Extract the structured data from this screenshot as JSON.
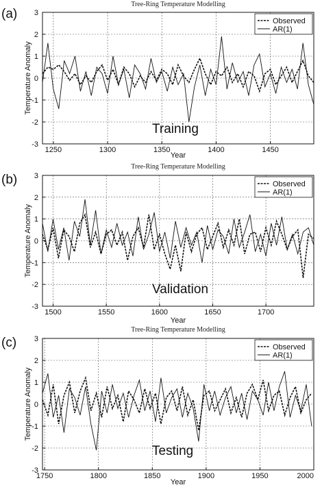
{
  "chart_data": [
    {
      "type": "line",
      "panel_label": "(a)",
      "title": "Tree-Ring Temperature Modelling",
      "xlabel": "Year",
      "ylabel": "Temperature Anomaly",
      "annotation": "Training",
      "xlim": [
        1240,
        1490
      ],
      "ylim": [
        -3,
        3
      ],
      "xticks": [
        1250,
        1300,
        1350,
        1400,
        1450
      ],
      "yticks": [
        -3,
        -2,
        -1,
        0,
        1,
        2,
        3
      ],
      "grid": true,
      "legend": "top-right",
      "series": [
        {
          "name": "Observed",
          "style": "dashed",
          "x": [
            1240,
            1245,
            1250,
            1255,
            1260,
            1265,
            1270,
            1275,
            1280,
            1285,
            1290,
            1295,
            1300,
            1305,
            1310,
            1315,
            1320,
            1325,
            1330,
            1335,
            1340,
            1345,
            1350,
            1355,
            1360,
            1365,
            1370,
            1375,
            1380,
            1385,
            1390,
            1395,
            1400,
            1405,
            1410,
            1415,
            1420,
            1425,
            1430,
            1435,
            1440,
            1445,
            1450,
            1455,
            1460,
            1465,
            1470,
            1475,
            1480,
            1485,
            1490
          ],
          "y": [
            0.2,
            0.5,
            0.4,
            0.6,
            0.3,
            -0.1,
            0.2,
            -0.3,
            0.1,
            -0.2,
            0.3,
            0.6,
            -0.1,
            0.4,
            -0.3,
            0.5,
            0.2,
            -0.4,
            0.1,
            -0.2,
            0.3,
            -0.1,
            0.4,
            0.2,
            -0.3,
            0.6,
            0.1,
            -0.2,
            0.4,
            0.9,
            0.2,
            -0.3,
            0.3,
            0.1,
            0.5,
            -0.2,
            0.2,
            -0.4,
            0.3,
            0.1,
            -0.6,
            0.2,
            0.4,
            -0.3,
            0.1,
            0.5,
            -0.2,
            0.3,
            0.8,
            0.1,
            -0.2
          ]
        },
        {
          "name": "AR(1)",
          "style": "solid",
          "x": [
            1240,
            1245,
            1250,
            1255,
            1260,
            1265,
            1270,
            1275,
            1280,
            1285,
            1290,
            1295,
            1300,
            1305,
            1310,
            1315,
            1320,
            1325,
            1330,
            1335,
            1340,
            1345,
            1350,
            1355,
            1360,
            1365,
            1370,
            1375,
            1380,
            1385,
            1390,
            1395,
            1400,
            1405,
            1410,
            1415,
            1420,
            1425,
            1430,
            1435,
            1440,
            1445,
            1450,
            1455,
            1460,
            1465,
            1470,
            1475,
            1480,
            1485,
            1490
          ],
          "y": [
            -0.2,
            1.6,
            -0.5,
            -1.4,
            0.8,
            0.2,
            1.0,
            -0.6,
            0.3,
            -0.8,
            0.5,
            0.2,
            -0.7,
            1.0,
            -0.3,
            0.4,
            -0.9,
            0.6,
            0.2,
            -0.5,
            0.9,
            -0.2,
            0.3,
            -0.6,
            0.5,
            -0.3,
            0.2,
            -2.0,
            -0.4,
            0.6,
            -0.8,
            0.4,
            -0.3,
            1.9,
            -0.5,
            0.7,
            -0.2,
            0.3,
            -0.8,
            0.6,
            1.1,
            -0.4,
            0.2,
            -0.7,
            0.5,
            -0.2,
            0.4,
            -0.5,
            1.6,
            -0.3,
            -1.2
          ]
        }
      ]
    },
    {
      "type": "line",
      "panel_label": "(b)",
      "title": "Tree-Ring Temperature Modelling",
      "xlabel": "Year",
      "ylabel": "Temperature Anomaly",
      "annotation": "Validation",
      "xlim": [
        1490,
        1745
      ],
      "ylim": [
        -3,
        3
      ],
      "xticks": [
        1500,
        1550,
        1600,
        1650,
        1700
      ],
      "yticks": [
        -3,
        -2,
        -1,
        0,
        1,
        2,
        3
      ],
      "grid": true,
      "legend": "top-right",
      "series": [
        {
          "name": "Observed",
          "style": "dashed",
          "x": [
            1490,
            1495,
            1500,
            1505,
            1510,
            1515,
            1520,
            1525,
            1530,
            1535,
            1540,
            1545,
            1550,
            1555,
            1560,
            1565,
            1570,
            1575,
            1580,
            1585,
            1590,
            1595,
            1600,
            1605,
            1610,
            1615,
            1620,
            1625,
            1630,
            1635,
            1640,
            1645,
            1650,
            1655,
            1660,
            1665,
            1670,
            1675,
            1680,
            1685,
            1690,
            1695,
            1700,
            1705,
            1710,
            1715,
            1720,
            1725,
            1730,
            1735,
            1740,
            1745
          ],
          "y": [
            0.3,
            -0.4,
            0.6,
            -0.8,
            0.5,
            0.2,
            -0.5,
            0.8,
            1.2,
            -0.3,
            0.4,
            -0.6,
            0.3,
            0.5,
            -0.2,
            0.4,
            -0.9,
            0.2,
            0.6,
            -0.3,
            1.2,
            -0.4,
            0.3,
            -0.6,
            -1.3,
            -0.2,
            -1.4,
            0.4,
            -0.5,
            0.3,
            0.6,
            -0.4,
            0.2,
            0.8,
            -0.3,
            0.5,
            -0.2,
            1.0,
            -0.6,
            0.3,
            0.4,
            -0.5,
            0.6,
            -0.2,
            0.9,
            0.3,
            -0.4,
            0.2,
            0.5,
            -1.7,
            0.3,
            0.1
          ]
        },
        {
          "name": "AR(1)",
          "style": "solid",
          "x": [
            1490,
            1495,
            1500,
            1505,
            1510,
            1515,
            1520,
            1525,
            1530,
            1535,
            1540,
            1545,
            1550,
            1555,
            1560,
            1565,
            1570,
            1575,
            1580,
            1585,
            1590,
            1595,
            1600,
            1605,
            1610,
            1615,
            1620,
            1625,
            1630,
            1635,
            1640,
            1645,
            1650,
            1655,
            1660,
            1665,
            1670,
            1675,
            1680,
            1685,
            1690,
            1695,
            1700,
            1705,
            1710,
            1715,
            1720,
            1725,
            1730,
            1735,
            1740,
            1745
          ],
          "y": [
            0.8,
            -0.5,
            1.0,
            -0.4,
            0.6,
            -0.9,
            0.9,
            0.2,
            1.9,
            -0.2,
            1.4,
            -0.6,
            0.5,
            -0.3,
            0.8,
            -0.2,
            0.4,
            -0.7,
            1.1,
            -0.4,
            0.3,
            1.3,
            -0.5,
            0.4,
            -0.8,
            0.9,
            -0.3,
            0.6,
            -0.2,
            0.4,
            -1.0,
            0.7,
            -0.4,
            0.5,
            0.2,
            -0.6,
            1.0,
            -0.3,
            0.4,
            1.2,
            -0.5,
            0.3,
            -0.7,
            0.8,
            -0.2,
            1.1,
            -0.4,
            0.3,
            -0.6,
            0.4,
            0.6,
            -0.2
          ]
        }
      ]
    },
    {
      "type": "line",
      "panel_label": "(c)",
      "title": "Tree-Ring Temperature Modelling",
      "xlabel": "Year",
      "ylabel": "Temperature Anomaly",
      "annotation": "Testing",
      "xlim": [
        1748,
        2000
      ],
      "ylim": [
        -3,
        3
      ],
      "xticks": [
        1750,
        1800,
        1850,
        1900,
        1950,
        2000
      ],
      "yticks": [
        -3,
        -2,
        -1,
        0,
        1,
        2,
        3
      ],
      "grid": true,
      "legend": "top-right",
      "series": [
        {
          "name": "Observed",
          "style": "dashed",
          "x": [
            1748,
            1753,
            1758,
            1763,
            1768,
            1773,
            1778,
            1783,
            1788,
            1793,
            1798,
            1803,
            1808,
            1813,
            1818,
            1823,
            1828,
            1833,
            1838,
            1843,
            1848,
            1853,
            1858,
            1863,
            1868,
            1873,
            1878,
            1883,
            1888,
            1893,
            1898,
            1903,
            1908,
            1913,
            1918,
            1923,
            1928,
            1933,
            1938,
            1943,
            1948,
            1953,
            1958,
            1963,
            1968,
            1973,
            1978,
            1983,
            1988,
            1993,
            1998
          ],
          "y": [
            0.2,
            -0.5,
            0.9,
            -0.9,
            0.4,
            1.0,
            -0.4,
            0.6,
            1.2,
            -0.3,
            0.5,
            -0.6,
            0.8,
            -0.2,
            0.4,
            -0.8,
            0.6,
            0.2,
            -0.4,
            0.7,
            -0.2,
            0.5,
            -0.9,
            0.3,
            0.6,
            -0.3,
            0.8,
            -0.5,
            0.2,
            -1.2,
            0.4,
            0.6,
            -0.3,
            0.2,
            0.7,
            -0.4,
            0.3,
            -0.6,
            0.5,
            0.9,
            0.2,
            1.1,
            -0.3,
            0.4,
            0.6,
            -0.5,
            0.3,
            0.8,
            -0.4,
            0.2,
            0.5
          ]
        },
        {
          "name": "AR(1)",
          "style": "solid",
          "x": [
            1748,
            1753,
            1758,
            1763,
            1768,
            1773,
            1778,
            1783,
            1788,
            1793,
            1798,
            1803,
            1808,
            1813,
            1818,
            1823,
            1828,
            1833,
            1838,
            1843,
            1848,
            1853,
            1858,
            1863,
            1868,
            1873,
            1878,
            1883,
            1888,
            1893,
            1898,
            1903,
            1908,
            1913,
            1918,
            1923,
            1928,
            1933,
            1938,
            1943,
            1948,
            1953,
            1958,
            1963,
            1968,
            1973,
            1978,
            1983,
            1988,
            1993,
            1998
          ],
          "y": [
            0.5,
            1.4,
            -0.6,
            0.4,
            -1.3,
            0.7,
            0.3,
            -0.5,
            0.8,
            -0.9,
            -2.1,
            0.6,
            -0.4,
            0.9,
            -0.2,
            0.5,
            -0.6,
            0.4,
            1.1,
            -0.3,
            0.6,
            -0.8,
            1.2,
            -0.4,
            0.3,
            0.7,
            -0.6,
            0.5,
            -0.2,
            -1.7,
            0.9,
            -0.3,
            0.6,
            -0.5,
            0.3,
            0.8,
            -0.4,
            0.5,
            -0.7,
            0.6,
            0.2,
            -0.5,
            1.0,
            -0.3,
            0.8,
            1.5,
            -0.6,
            0.4,
            -0.3,
            0.9,
            -1.0
          ]
        }
      ]
    }
  ]
}
